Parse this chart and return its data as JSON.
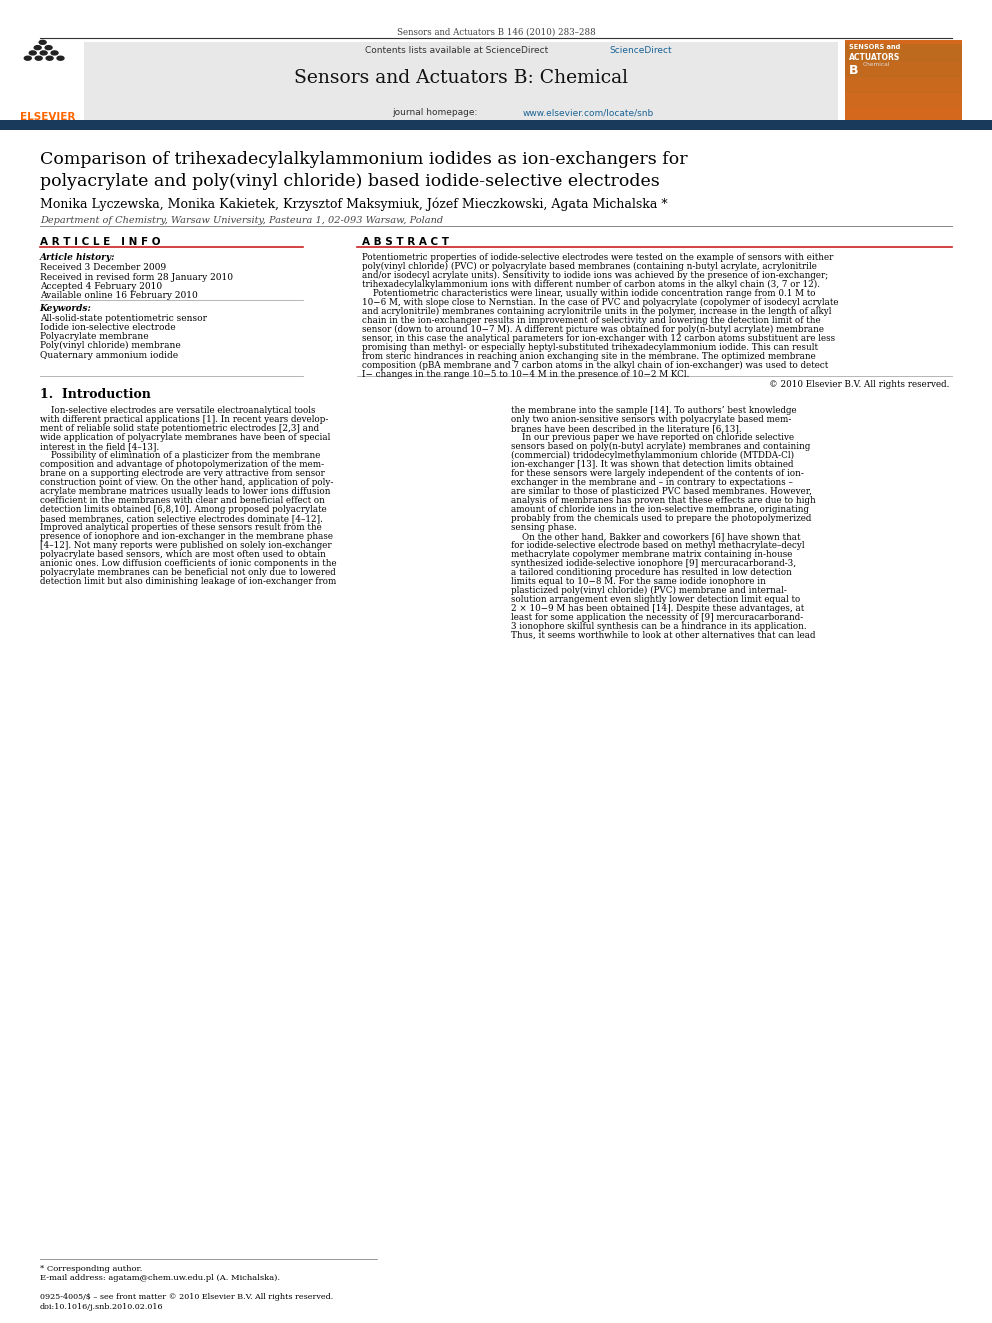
{
  "page_width": 9.92,
  "page_height": 13.23,
  "bg_color": "#ffffff",
  "top_journal_ref": "Sensors and Actuators B 146 (2010) 283–288",
  "header_bg": "#e8e8e8",
  "contents_line": "Contents lists available at ScienceDirect",
  "sciencedirect_color": "#1a6496",
  "journal_name": "Sensors and Actuators B: Chemical",
  "homepage_url_color": "#1a6496",
  "article_title_line1": "Comparison of trihexadecylalkylammonium iodides as ion-exchangers for",
  "article_title_line2": "polyacrylate and poly(vinyl chloride) based iodide-selective electrodes",
  "authors": "Monika Lyczewska, Monika Kakietek, Krzysztof Maksymiuk, Józef Mieczkowski, Agata Michalska *",
  "affiliation": "Department of Chemistry, Warsaw University, Pasteura 1, 02-093 Warsaw, Poland",
  "article_info_title": "A R T I C L E   I N F O",
  "article_history_label": "Article history:",
  "received": "Received 3 December 2009",
  "received_revised": "Received in revised form 28 January 2010",
  "accepted": "Accepted 4 February 2010",
  "available": "Available online 16 February 2010",
  "keywords_label": "Keywords:",
  "keyword1": "All-solid-state potentiometric sensor",
  "keyword2": "Iodide ion-selective electrode",
  "keyword3": "Polyacrylate membrane",
  "keyword4": "Poly(vinyl chloride) membrane",
  "keyword5": "Quaternary ammonium iodide",
  "abstract_title": "A B S T R A C T",
  "section1_title": "1.  Introduction",
  "footnote_star": "* Corresponding author.",
  "footnote_email": "E-mail address: agatam@chem.uw.edu.pl (A. Michalska).",
  "footer_line": "0925-4005/$ – see front matter © 2010 Elsevier B.V. All rights reserved.",
  "footer_doi": "doi:10.1016/j.snb.2010.02.016",
  "abstract_lines": [
    "Potentiometric properties of iodide-selective electrodes were tested on the example of sensors with either",
    "poly(vinyl chloride) (PVC) or polyacrylate based membranes (containing n-butyl acrylate, acrylonitrile",
    "and/or isodecyl acrylate units). Sensitivity to iodide ions was achieved by the presence of ion-exchanger;",
    "trihexadecylalkylammonium ions with different number of carbon atoms in the alkyl chain (3, 7 or 12).",
    "    Potentiometric characteristics were linear, usually within iodide concentration range from 0.1 M to",
    "10−6 M, with slope close to Nernstian. In the case of PVC and polyacrylate (copolymer of isodecyl acrylate",
    "and acrylonitrile) membranes containing acrylonitrile units in the polymer, increase in the length of alkyl",
    "chain in the ion-exchanger results in improvement of selectivity and lowering the detection limit of the",
    "sensor (down to around 10−7 M). A different picture was obtained for poly(n-butyl acrylate) membrane",
    "sensor, in this case the analytical parameters for ion-exchanger with 12 carbon atoms substituent are less",
    "promising than methyl- or especially heptyl-substituted trihexadecylammonium iodide. This can result",
    "from steric hindrances in reaching anion exchanging site in the membrane. The optimized membrane",
    "composition (pBA membrane and 7 carbon atoms in the alkyl chain of ion-exchanger) was used to detect",
    "I− changes in the range 10−5 to 10−4 M in the presence of 10−2 M KCl."
  ],
  "copyright_line": "© 2010 Elsevier B.V. All rights reserved.",
  "intro_left_lines": [
    "    Ion-selective electrodes are versatile electroanalytical tools",
    "with different practical applications [1]. In recent years develop-",
    "ment of reliable solid state potentiometric electrodes [2,3] and",
    "wide application of polyacrylate membranes have been of special",
    "interest in the field [4–13].",
    "    Possibility of elimination of a plasticizer from the membrane",
    "composition and advantage of photopolymerization of the mem-",
    "brane on a supporting electrode are very attractive from sensor",
    "construction point of view. On the other hand, application of poly-",
    "acrylate membrane matrices usually leads to lower ions diffusion",
    "coefficient in the membranes with clear and beneficial effect on",
    "detection limits obtained [6,8,10]. Among proposed polyacrylate",
    "based membranes, cation selective electrodes dominate [4–12].",
    "Improved analytical properties of these sensors result from the",
    "presence of ionophore and ion-exchanger in the membrane phase",
    "[4–12]. Not many reports were published on solely ion-exchanger",
    "polyacrylate based sensors, which are most often used to obtain",
    "anionic ones. Low diffusion coefficients of ionic components in the",
    "polyacrylate membranes can be beneficial not only due to lowered",
    "detection limit but also diminishing leakage of ion-exchanger from"
  ],
  "intro_right_lines": [
    "the membrane into the sample [14]. To authors’ best knowledge",
    "only two anion-sensitive sensors with polyacrylate based mem-",
    "branes have been described in the literature [6,13].",
    "    In our previous paper we have reported on chloride selective",
    "sensors based on poly(n-butyl acrylate) membranes and containing",
    "(commercial) tridodecylmethylammonium chloride (MTDDA-Cl)",
    "ion-exchanger [13]. It was shown that detection limits obtained",
    "for these sensors were largely independent of the contents of ion-",
    "exchanger in the membrane and – in contrary to expectations –",
    "are similar to those of plasticized PVC based membranes. However,",
    "analysis of membranes has proven that these effects are due to high",
    "amount of chloride ions in the ion-selective membrane, originating",
    "probably from the chemicals used to prepare the photopolymerized",
    "sensing phase.",
    "    On the other hand, Bakker and coworkers [6] have shown that",
    "for iodide-selective electrode based on methyl methacrylate–decyl",
    "methacrylate copolymer membrane matrix containing in-house",
    "synthesized iodide-selective ionophore [9] mercuracarborand-3,",
    "a tailored conditioning procedure has resulted in low detection",
    "limits equal to 10−8 M. For the same iodide ionophore in",
    "plasticized poly(vinyl chloride) (PVC) membrane and internal-",
    "solution arrangement even slightly lower detection limit equal to",
    "2 × 10−9 M has been obtained [14]. Despite these advantages, at",
    "least for some application the necessity of [9] mercuracarborand-",
    "3 ionophore skilful synthesis can be a hindrance in its application.",
    "Thus, it seems worthwhile to look at other alternatives that can lead"
  ]
}
